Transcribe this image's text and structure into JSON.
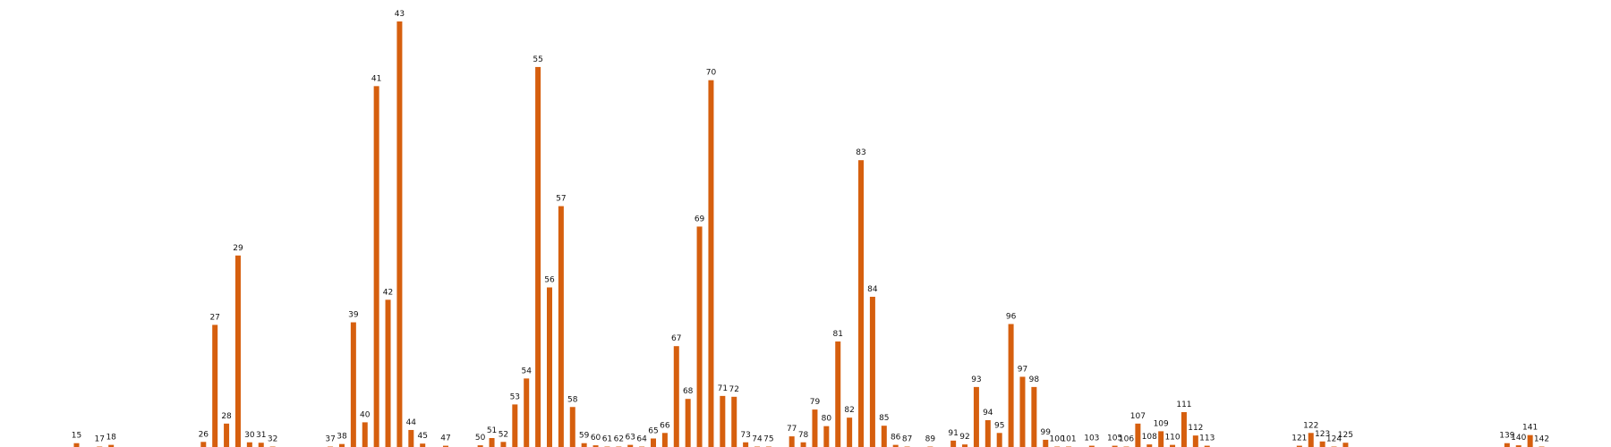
{
  "chart_data": {
    "type": "bar",
    "title": "",
    "xlabel": "",
    "ylabel": "",
    "grid": false,
    "legend": "none",
    "ylim": [
      0,
      100
    ],
    "bar_color": "#d65f0e",
    "categories": [
      "15",
      "17",
      "18",
      "26",
      "27",
      "28",
      "29",
      "30",
      "31",
      "32",
      "37",
      "38",
      "39",
      "40",
      "41",
      "42",
      "43",
      "44",
      "45",
      "47",
      "50",
      "51",
      "52",
      "53",
      "54",
      "55",
      "56",
      "57",
      "58",
      "59",
      "60",
      "61",
      "62",
      "63",
      "64",
      "65",
      "66",
      "67",
      "68",
      "69",
      "70",
      "71",
      "72",
      "73",
      "74",
      "75",
      "77",
      "78",
      "79",
      "80",
      "81",
      "82",
      "83",
      "84",
      "85",
      "86",
      "87",
      "89",
      "91",
      "92",
      "93",
      "94",
      "95",
      "96",
      "97",
      "98",
      "99",
      "100",
      "101",
      "103",
      "105",
      "106",
      "107",
      "108",
      "109",
      "110",
      "111",
      "112",
      "113",
      "121",
      "122",
      "123",
      "124",
      "125",
      "139",
      "140",
      "141",
      "142"
    ],
    "values": [
      0.9,
      0.1,
      0.5,
      1.2,
      28.7,
      5.5,
      45.0,
      1.1,
      1.0,
      0.1,
      0.1,
      0.7,
      29.3,
      5.8,
      84.8,
      34.6,
      100.0,
      4.0,
      0.8,
      0.3,
      0.4,
      2.1,
      1.2,
      10.0,
      16.1,
      89.3,
      37.5,
      56.6,
      9.4,
      0.9,
      0.4,
      0.1,
      0.1,
      0.5,
      0.1,
      2.0,
      3.3,
      23.7,
      11.3,
      51.8,
      86.2,
      12.0,
      11.8,
      1.1,
      0.1,
      0.1,
      2.5,
      1.1,
      8.8,
      4.9,
      24.8,
      6.9,
      67.4,
      35.3,
      5.0,
      0.5,
      0.1,
      0.1,
      1.5,
      0.6,
      14.1,
      6.3,
      3.3,
      28.9,
      16.5,
      14.1,
      1.7,
      0.1,
      0.1,
      0.3,
      0.3,
      0.1,
      5.5,
      0.6,
      3.7,
      0.5,
      8.2,
      2.7,
      0.3,
      0.3,
      3.3,
      1.3,
      0.1,
      1.0,
      0.9,
      0.4,
      2.8,
      0.1
    ]
  }
}
